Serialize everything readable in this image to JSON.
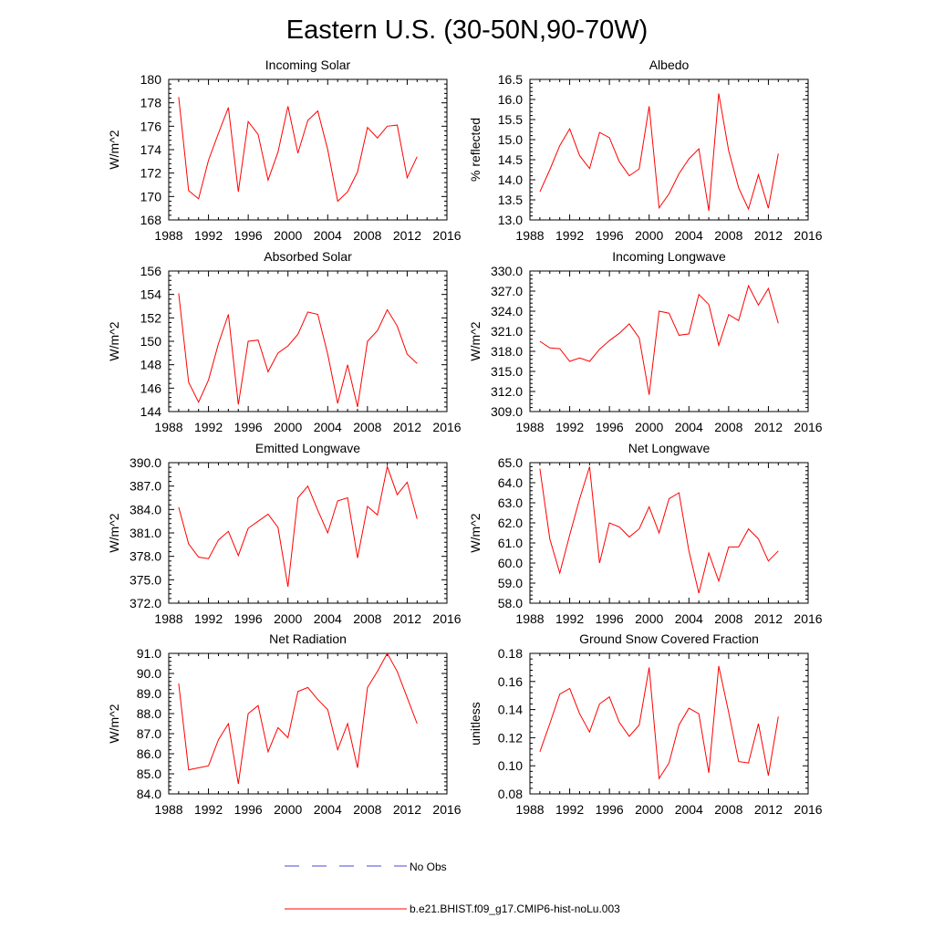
{
  "figure": {
    "title": "Eastern U.S. (30-50N,90-70W)",
    "legend": [
      {
        "label": "No Obs",
        "color": "#4a4ad0",
        "dash": "dashed"
      },
      {
        "label": "b.e21.BHIST.f09_g17.CMIP6-hist-noLu.003",
        "color": "#ff0000",
        "dash": "solid"
      }
    ]
  },
  "chart_data": [
    {
      "type": "line",
      "title": "Incoming Solar",
      "ylabel": "W/m^2",
      "xlim": [
        1988,
        2016
      ],
      "xticks": [
        "1988",
        "1992",
        "1996",
        "2000",
        "2004",
        "2008",
        "2012",
        "2016"
      ],
      "ylim": [
        168,
        180
      ],
      "yticks": [
        "168",
        "170",
        "172",
        "174",
        "176",
        "178",
        "180"
      ],
      "color": "#ff0000",
      "x": [
        1989,
        1990,
        1991,
        1992,
        1993,
        1994,
        1995,
        1996,
        1997,
        1998,
        1999,
        2000,
        2001,
        2002,
        2003,
        2004,
        2005,
        2006,
        2007,
        2008,
        2009,
        2010,
        2011,
        2012,
        2013
      ],
      "series": [
        {
          "values": [
            178.5,
            170.5,
            169.8,
            173.1,
            175.4,
            177.6,
            170.4,
            176.4,
            175.3,
            171.4,
            173.8,
            177.7,
            173.7,
            176.5,
            177.3,
            174.0,
            169.6,
            170.4,
            172.1,
            175.9,
            175.0,
            176.0,
            176.1,
            171.6,
            173.4
          ]
        }
      ]
    },
    {
      "type": "line",
      "title": "Albedo",
      "ylabel": "% reflected",
      "xlim": [
        1988,
        2016
      ],
      "xticks": [
        "1988",
        "1992",
        "1996",
        "2000",
        "2004",
        "2008",
        "2012",
        "2016"
      ],
      "ylim": [
        13.0,
        16.5
      ],
      "yticks": [
        "13.0",
        "13.5",
        "14.0",
        "14.5",
        "15.0",
        "15.5",
        "16.0",
        "16.5"
      ],
      "color": "#ff0000",
      "x": [
        1989,
        1990,
        1991,
        1992,
        1993,
        1994,
        1995,
        1996,
        1997,
        1998,
        1999,
        2000,
        2001,
        2002,
        2003,
        2004,
        2005,
        2006,
        2007,
        2008,
        2009,
        2010,
        2011,
        2012,
        2013
      ],
      "series": [
        {
          "values": [
            13.7,
            14.25,
            14.85,
            15.27,
            14.6,
            14.28,
            15.18,
            15.05,
            14.45,
            14.1,
            14.27,
            15.83,
            13.3,
            13.65,
            14.15,
            14.52,
            14.77,
            13.23,
            16.15,
            14.72,
            13.8,
            13.27,
            14.13,
            13.29,
            14.65
          ]
        }
      ]
    },
    {
      "type": "line",
      "title": "Absorbed Solar",
      "ylabel": "W/m^2",
      "xlim": [
        1988,
        2016
      ],
      "xticks": [
        "1988",
        "1992",
        "1996",
        "2000",
        "2004",
        "2008",
        "2012",
        "2016"
      ],
      "ylim": [
        144,
        156
      ],
      "yticks": [
        "144",
        "146",
        "148",
        "150",
        "152",
        "154",
        "156"
      ],
      "color": "#ff0000",
      "x": [
        1989,
        1990,
        1991,
        1992,
        1993,
        1994,
        1995,
        1996,
        1997,
        1998,
        1999,
        2000,
        2001,
        2002,
        2003,
        2004,
        2005,
        2006,
        2007,
        2008,
        2009,
        2010,
        2011,
        2012,
        2013
      ],
      "series": [
        {
          "values": [
            154.1,
            146.5,
            144.8,
            146.7,
            149.8,
            152.3,
            144.6,
            150.0,
            150.1,
            147.4,
            149.0,
            149.6,
            150.6,
            152.5,
            152.3,
            148.9,
            144.7,
            148.0,
            144.4,
            150.0,
            150.9,
            152.7,
            151.3,
            148.9,
            148.1
          ]
        }
      ]
    },
    {
      "type": "line",
      "title": "Incoming Longwave",
      "ylabel": "W/m^2",
      "xlim": [
        1988,
        2016
      ],
      "xticks": [
        "1988",
        "1992",
        "1996",
        "2000",
        "2004",
        "2008",
        "2012",
        "2016"
      ],
      "ylim": [
        309.0,
        330.0
      ],
      "yticks": [
        "309.0",
        "312.0",
        "315.0",
        "318.0",
        "321.0",
        "324.0",
        "327.0",
        "330.0"
      ],
      "color": "#ff0000",
      "x": [
        1989,
        1990,
        1991,
        1992,
        1993,
        1994,
        1995,
        1996,
        1997,
        1998,
        1999,
        2000,
        2001,
        2002,
        2003,
        2004,
        2005,
        2006,
        2007,
        2008,
        2009,
        2010,
        2011,
        2012,
        2013
      ],
      "series": [
        {
          "values": [
            319.5,
            318.5,
            318.4,
            316.5,
            317.0,
            316.5,
            318.3,
            319.6,
            320.7,
            322.1,
            320.0,
            311.5,
            324.0,
            323.7,
            320.4,
            320.6,
            326.5,
            325.0,
            318.9,
            323.5,
            322.6,
            327.8,
            324.9,
            327.4,
            322.2
          ]
        }
      ]
    },
    {
      "type": "line",
      "title": "Emitted Longwave",
      "ylabel": "W/m^2",
      "xlim": [
        1988,
        2016
      ],
      "xticks": [
        "1988",
        "1992",
        "1996",
        "2000",
        "2004",
        "2008",
        "2012",
        "2016"
      ],
      "ylim": [
        372.0,
        390.0
      ],
      "yticks": [
        "372.0",
        "375.0",
        "378.0",
        "381.0",
        "384.0",
        "387.0",
        "390.0"
      ],
      "color": "#ff0000",
      "x": [
        1989,
        1990,
        1991,
        1992,
        1993,
        1994,
        1995,
        1996,
        1997,
        1998,
        1999,
        2000,
        2001,
        2002,
        2003,
        2004,
        2005,
        2006,
        2007,
        2008,
        2009,
        2010,
        2011,
        2012,
        2013
      ],
      "series": [
        {
          "values": [
            384.3,
            379.6,
            377.9,
            377.7,
            380.1,
            381.2,
            378.1,
            381.6,
            382.5,
            383.4,
            381.7,
            374.1,
            385.5,
            387.0,
            383.9,
            381.0,
            385.1,
            385.5,
            377.8,
            384.4,
            383.3,
            389.5,
            385.9,
            387.5,
            382.8
          ]
        }
      ]
    },
    {
      "type": "line",
      "title": "Net Longwave",
      "ylabel": "W/m^2",
      "xlim": [
        1988,
        2016
      ],
      "xticks": [
        "1988",
        "1992",
        "1996",
        "2000",
        "2004",
        "2008",
        "2012",
        "2016"
      ],
      "ylim": [
        58.0,
        65.0
      ],
      "yticks": [
        "58.0",
        "59.0",
        "60.0",
        "61.0",
        "62.0",
        "63.0",
        "64.0",
        "65.0"
      ],
      "color": "#ff0000",
      "x": [
        1989,
        1990,
        1991,
        1992,
        1993,
        1994,
        1995,
        1996,
        1997,
        1998,
        1999,
        2000,
        2001,
        2002,
        2003,
        2004,
        2005,
        2006,
        2007,
        2008,
        2009,
        2010,
        2011,
        2012,
        2013
      ],
      "series": [
        {
          "values": [
            64.7,
            61.2,
            59.5,
            61.4,
            63.2,
            64.8,
            60.0,
            62.0,
            61.8,
            61.3,
            61.7,
            62.8,
            61.5,
            63.2,
            63.5,
            60.6,
            58.5,
            60.5,
            59.1,
            60.8,
            60.8,
            61.7,
            61.2,
            60.1,
            60.6
          ]
        }
      ]
    },
    {
      "type": "line",
      "title": "Net Radiation",
      "ylabel": "W/m^2",
      "xlim": [
        1988,
        2016
      ],
      "xticks": [
        "1988",
        "1992",
        "1996",
        "2000",
        "2004",
        "2008",
        "2012",
        "2016"
      ],
      "ylim": [
        84.0,
        91.0
      ],
      "yticks": [
        "84.0",
        "85.0",
        "86.0",
        "87.0",
        "88.0",
        "89.0",
        "90.0",
        "91.0"
      ],
      "color": "#ff0000",
      "x": [
        1989,
        1990,
        1991,
        1992,
        1993,
        1994,
        1995,
        1996,
        1997,
        1998,
        1999,
        2000,
        2001,
        2002,
        2003,
        2004,
        2005,
        2006,
        2007,
        2008,
        2009,
        2010,
        2011,
        2012,
        2013
      ],
      "series": [
        {
          "values": [
            89.5,
            85.2,
            85.3,
            85.4,
            86.7,
            87.5,
            84.5,
            88.0,
            88.4,
            86.1,
            87.3,
            86.8,
            89.1,
            89.3,
            88.7,
            88.2,
            86.2,
            87.5,
            85.3,
            89.3,
            90.1,
            91.0,
            90.1,
            88.8,
            87.5
          ]
        }
      ]
    },
    {
      "type": "line",
      "title": "Ground Snow Covered Fraction",
      "ylabel": "unitless",
      "xlim": [
        1988,
        2016
      ],
      "xticks": [
        "1988",
        "1992",
        "1996",
        "2000",
        "2004",
        "2008",
        "2012",
        "2016"
      ],
      "ylim": [
        0.08,
        0.18
      ],
      "yticks": [
        "0.08",
        "0.10",
        "0.12",
        "0.14",
        "0.16",
        "0.18"
      ],
      "color": "#ff0000",
      "x": [
        1989,
        1990,
        1991,
        1992,
        1993,
        1994,
        1995,
        1996,
        1997,
        1998,
        1999,
        2000,
        2001,
        2002,
        2003,
        2004,
        2005,
        2006,
        2007,
        2008,
        2009,
        2010,
        2011,
        2012,
        2013
      ],
      "series": [
        {
          "values": [
            0.11,
            0.13,
            0.151,
            0.155,
            0.137,
            0.124,
            0.144,
            0.149,
            0.131,
            0.121,
            0.129,
            0.17,
            0.091,
            0.102,
            0.129,
            0.141,
            0.137,
            0.095,
            0.171,
            0.138,
            0.103,
            0.102,
            0.13,
            0.093,
            0.135
          ]
        }
      ]
    }
  ]
}
